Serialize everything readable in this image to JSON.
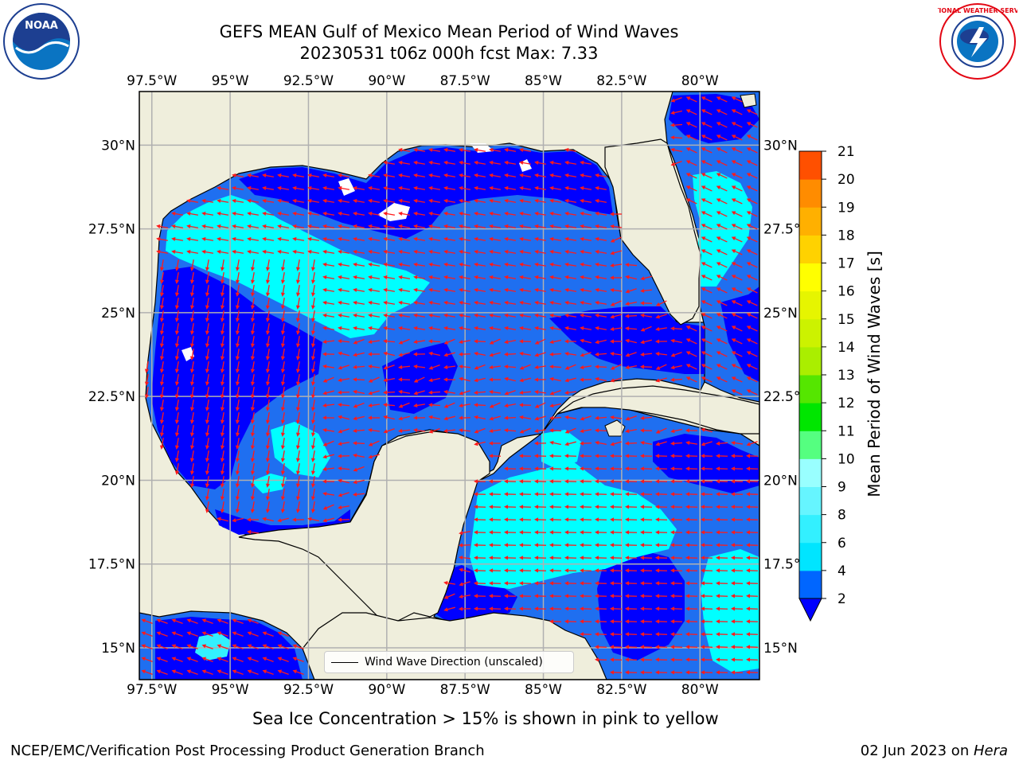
{
  "title": {
    "line1": "GEFS MEAN Gulf of Mexico Mean Period of Wind Waves",
    "line2": "20230531 t06z 000h fcst   Max: 7.33"
  },
  "logos": {
    "left": {
      "name": "noaa-logo",
      "text": "NOAA"
    },
    "right": {
      "name": "nws-logo",
      "text": "NATIONAL WEATHER SERVICE"
    }
  },
  "map": {
    "lon_range": [
      -97.9,
      -78.1
    ],
    "lat_range": [
      14.05,
      31.6
    ],
    "lon_ticks": [
      {
        "value": -97.5,
        "label": "97.5°W"
      },
      {
        "value": -95,
        "label": "95°W"
      },
      {
        "value": -92.5,
        "label": "92.5°W"
      },
      {
        "value": -90,
        "label": "90°W"
      },
      {
        "value": -87.5,
        "label": "87.5°W"
      },
      {
        "value": -85,
        "label": "85°W"
      },
      {
        "value": -82.5,
        "label": "82.5°W"
      },
      {
        "value": -80,
        "label": "80°W"
      }
    ],
    "lat_ticks": [
      {
        "value": 30,
        "label": "30°N"
      },
      {
        "value": 27.5,
        "label": "27.5°N"
      },
      {
        "value": 25,
        "label": "25°N"
      },
      {
        "value": 22.5,
        "label": "22.5°N"
      },
      {
        "value": 20,
        "label": "20°N"
      },
      {
        "value": 17.5,
        "label": "17.5°N"
      },
      {
        "value": 15,
        "label": "15°N"
      }
    ],
    "gridlines": true,
    "land_color": "#efeedc",
    "arrow_color": "#ff1a1a"
  },
  "legend": {
    "label": "Wind Wave Direction (unscaled)",
    "placement": "bottom-center"
  },
  "colorbar": {
    "title": "Mean Period of Wind Waves [s]",
    "ticks": [
      "2",
      "4",
      "6",
      "8",
      "9",
      "10",
      "11",
      "12",
      "13",
      "14",
      "15",
      "16",
      "17",
      "18",
      "19",
      "20",
      "21"
    ],
    "colors": [
      "#0066ff",
      "#00e5ff",
      "#33f0ff",
      "#66f5ff",
      "#99ffff",
      "#55ff80",
      "#00e600",
      "#55e600",
      "#aaee00",
      "#ccf200",
      "#e6f500",
      "#ffff00",
      "#ffd200",
      "#ffb000",
      "#ff8c00",
      "#ff5000",
      "#ff2800",
      "#ff0000"
    ],
    "extend_color": "#0000ff"
  },
  "note": "Sea Ice Concentration > 15% is shown in pink to yellow",
  "footer": {
    "left": "NCEP/EMC/Verification Post Processing Product Generation Branch",
    "right_date": "02 Jun 2023 on ",
    "right_host": "Hera"
  }
}
